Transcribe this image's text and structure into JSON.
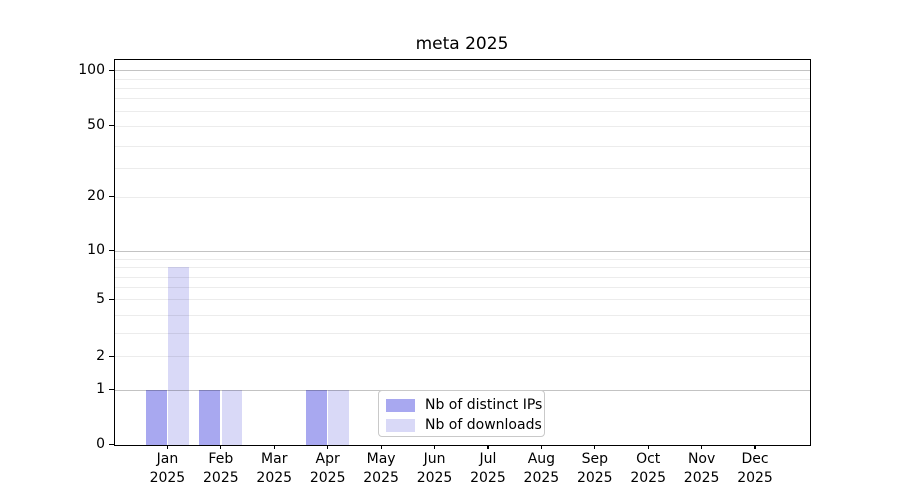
{
  "chart_data": {
    "type": "bar",
    "title": "meta 2025",
    "categories": [
      "Jan 2025",
      "Feb 2025",
      "Mar 2025",
      "Apr 2025",
      "May 2025",
      "Jun 2025",
      "Jul 2025",
      "Aug 2025",
      "Sep 2025",
      "Oct 2025",
      "Nov 2025",
      "Dec 2025"
    ],
    "series": [
      {
        "name": "Nb of distinct IPs",
        "color": "#a8a8f0",
        "values": [
          1,
          1,
          0,
          1,
          0,
          0,
          0,
          0,
          0,
          0,
          0,
          0
        ]
      },
      {
        "name": "Nb of downloads",
        "color": "#d9d9f7",
        "values": [
          8,
          1,
          0,
          1,
          0,
          0,
          0,
          0,
          0,
          0,
          0,
          0
        ]
      }
    ],
    "xlabel": "",
    "ylabel": "",
    "y_axis": {
      "scale": "symlog",
      "range": [
        0,
        100
      ],
      "tick_labels": [
        "100",
        "50",
        "20",
        "10",
        "5",
        "2",
        "1",
        "0"
      ],
      "tick_values": [
        100,
        50,
        20,
        10,
        5,
        2,
        1,
        0
      ],
      "major_gridline_values": [
        1,
        10,
        100
      ],
      "minor_gridline_values": [
        2,
        3,
        4,
        5,
        6,
        7,
        8,
        9,
        20,
        30,
        40,
        50,
        60,
        70,
        80,
        90
      ]
    },
    "grid": true,
    "legend": {
      "position": "lower center",
      "entries": [
        "Nb of distinct IPs",
        "Nb of downloads"
      ]
    }
  },
  "colors": {
    "bar_distinct_ips": "#a8a8f0",
    "bar_downloads": "#d9d9f7",
    "axis": "#000000",
    "legend_border": "#c9c9c9",
    "background": "#ffffff"
  }
}
